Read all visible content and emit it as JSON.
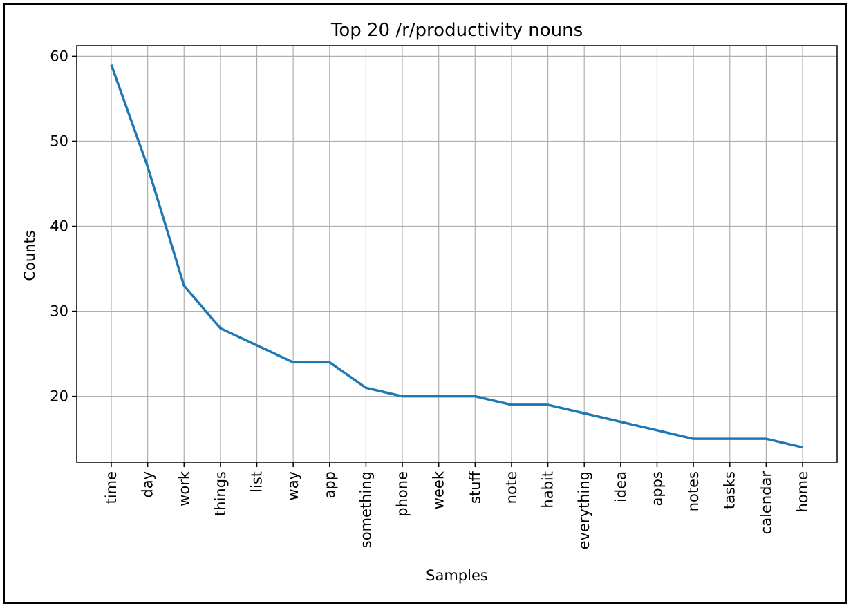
{
  "chart_data": {
    "type": "line",
    "title": "Top 20 /r/productivity nouns",
    "xlabel": "Samples",
    "ylabel": "Counts",
    "categories": [
      "time",
      "day",
      "work",
      "things",
      "list",
      "way",
      "app",
      "something",
      "phone",
      "week",
      "stuff",
      "note",
      "habit",
      "everything",
      "idea",
      "apps",
      "notes",
      "tasks",
      "calendar",
      "home"
    ],
    "values": [
      59,
      47,
      33,
      28,
      26,
      24,
      24,
      21,
      20,
      20,
      20,
      19,
      19,
      18,
      17,
      16,
      15,
      15,
      15,
      14
    ],
    "ylim": [
      12.25,
      61.25
    ],
    "yticks": [
      20,
      30,
      40,
      50,
      60
    ],
    "grid": true,
    "line_color": "#1f77b4"
  }
}
